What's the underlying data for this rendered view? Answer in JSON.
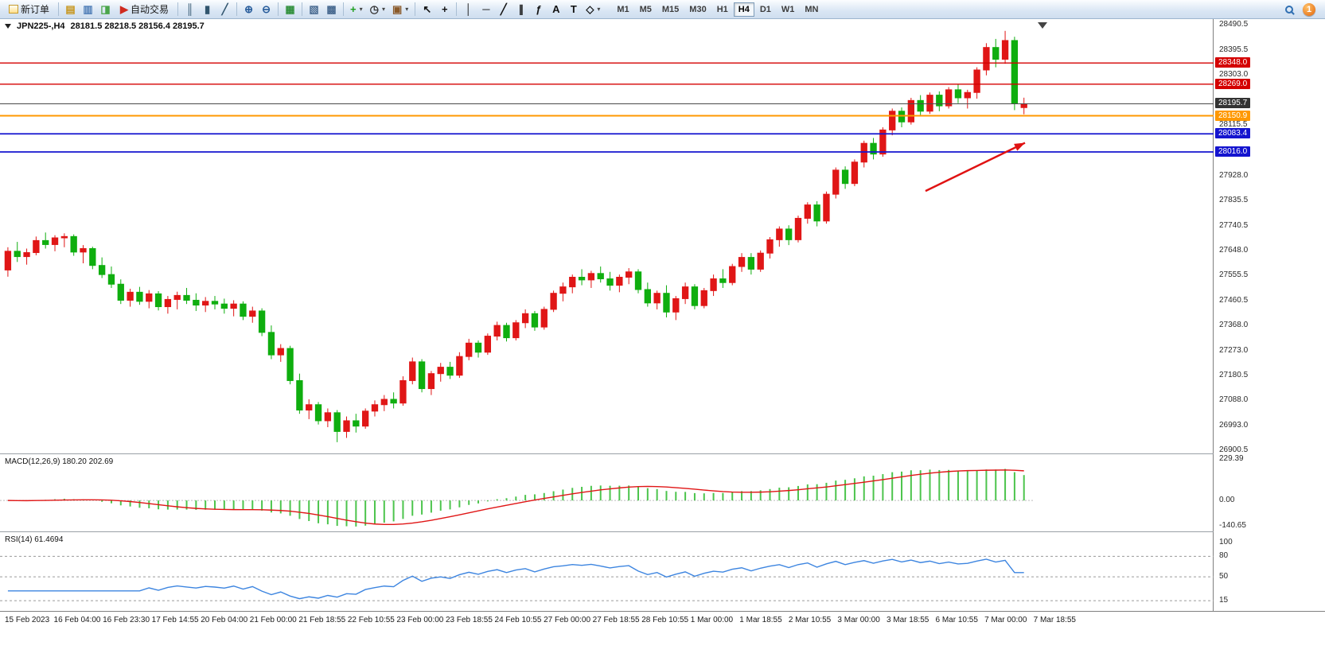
{
  "toolbar": {
    "new_order_label": "新订单",
    "notification_count": "1",
    "timeframes": [
      "M1",
      "M5",
      "M15",
      "M30",
      "H1",
      "H4",
      "D1",
      "W1",
      "MN"
    ],
    "active_timeframe": "H4",
    "icon_groups": [
      {
        "items": [
          {
            "button": "market-watch-button",
            "icon": "market-watch-icon",
            "glyph": "▤",
            "color": "#c79417"
          },
          {
            "button": "data-window-button",
            "icon": "data-window-icon",
            "glyph": "▥",
            "color": "#4a7ab5"
          },
          {
            "button": "navigator-button",
            "icon": "navigator-icon",
            "glyph": "◨",
            "color": "#4aa54a"
          },
          {
            "button": "auto-trading-button",
            "icon": "auto-trading-icon",
            "glyph": "▶",
            "color": "#cf2b20",
            "label": "自动交易"
          }
        ]
      },
      {
        "items": [
          {
            "button": "bar-chart-button",
            "icon": "bar-chart-icon",
            "glyph": "║",
            "color": "#31556e"
          },
          {
            "button": "candlestick-chart-button",
            "icon": "candlestick-chart-icon",
            "glyph": "▮",
            "color": "#31556e"
          },
          {
            "button": "line-chart-button",
            "icon": "line-chart-icon",
            "glyph": "╱",
            "color": "#31556e"
          }
        ]
      },
      {
        "items": [
          {
            "button": "zoom-in-button",
            "icon": "zoom-in-icon",
            "glyph": "⊕",
            "color": "#275c9b"
          },
          {
            "button": "zoom-out-button",
            "icon": "zoom-out-icon",
            "glyph": "⊖",
            "color": "#275c9b"
          }
        ]
      },
      {
        "items": [
          {
            "button": "tile-windows-button",
            "icon": "tile-windows-icon",
            "glyph": "▦",
            "color": "#2f8f3a"
          }
        ]
      },
      {
        "items": [
          {
            "button": "new-chart-button",
            "icon": "new-chart-icon",
            "glyph": "▧",
            "color": "#46688f"
          },
          {
            "button": "chart-profiles-button",
            "icon": "chart-profiles-icon",
            "glyph": "▩",
            "color": "#46688f"
          }
        ]
      },
      {
        "items": [
          {
            "button": "indicators-button",
            "icon": "add-indicator-icon",
            "glyph": "+",
            "color": "#1d9e1d",
            "caret": true
          },
          {
            "button": "periods-button",
            "icon": "clock-icon",
            "glyph": "◷",
            "color": "#333333",
            "caret": true
          },
          {
            "button": "templates-button",
            "icon": "template-icon",
            "glyph": "▣",
            "color": "#8a5a2a",
            "caret": true
          }
        ]
      },
      {
        "items": [
          {
            "button": "cursor-button",
            "icon": "cursor-icon",
            "glyph": "↖",
            "color": "#111111"
          },
          {
            "button": "crosshair-button",
            "icon": "crosshair-icon",
            "glyph": "+",
            "color": "#111111"
          }
        ]
      },
      {
        "items": [
          {
            "button": "vertical-line-button",
            "icon": "vertical-line-icon",
            "glyph": "│",
            "color": "#111111"
          },
          {
            "button": "horizontal-line-button",
            "icon": "horizontal-line-icon",
            "glyph": "─",
            "color": "#111111"
          },
          {
            "button": "trendline-button",
            "icon": "trendline-icon",
            "glyph": "╱",
            "color": "#111111"
          },
          {
            "button": "channel-button",
            "icon": "channel-icon",
            "glyph": "∥",
            "color": "#111111"
          },
          {
            "button": "fibonacci-button",
            "icon": "fibonacci-icon",
            "glyph": "ƒ",
            "color": "#111111"
          },
          {
            "button": "text-button",
            "icon": "text-icon",
            "glyph": "A",
            "color": "#111111"
          },
          {
            "button": "label-button",
            "icon": "text-label-icon",
            "glyph": "T",
            "color": "#111111"
          },
          {
            "button": "shapes-button",
            "icon": "shapes-icon",
            "glyph": "◇",
            "color": "#111111",
            "caret": true
          }
        ]
      }
    ]
  },
  "chart": {
    "symbol_title": "JPN225-,H4",
    "ohlc_text": "28181.5 28218.5 28156.4 28195.7",
    "macd_label": "MACD(12,26,9) 180.20 202.69",
    "rsi_label": "RSI(14) 61.4694"
  },
  "chart_data": {
    "type": "candlestick",
    "symbol": "JPN225-",
    "timeframe": "H4",
    "layout": {
      "candle_area_frac": 0.845
    },
    "colors": {
      "bull": "#e01616",
      "bear": "#0fae0f",
      "macd_hist": "#4cc44c",
      "macd_signal": "#e01616",
      "rsi_line": "#3d85e0"
    },
    "price_axis": {
      "min": 26890,
      "max": 28512,
      "ticks": [
        28490.5,
        28395.5,
        28303.0,
        28115.5,
        27928.0,
        27835.5,
        27740.5,
        27648.0,
        27555.5,
        27460.5,
        27368.0,
        27273.0,
        27180.5,
        27088.0,
        26993.0,
        26900.5
      ]
    },
    "levels": [
      {
        "name": "resistance-line-28348",
        "price": 28348.0,
        "color": "#d40000",
        "width": 1.3,
        "label_bg": "#d40000"
      },
      {
        "name": "resistance-line-28269",
        "price": 28269.0,
        "color": "#d40000",
        "width": 1.3,
        "label_bg": "#d40000"
      },
      {
        "name": "current-price-line",
        "price": 28195.7,
        "color": "#4a4a4a",
        "width": 1,
        "label_bg": "#333333"
      },
      {
        "name": "support-line-28150",
        "price": 28150.9,
        "color": "#ff9800",
        "width": 2,
        "label_bg": "#ff9800"
      },
      {
        "name": "support-line-28083",
        "price": 28083.4,
        "color": "#1414cf",
        "width": 1.8,
        "label_bg": "#1414cf"
      },
      {
        "name": "support-line-28016",
        "price": 28016.0,
        "color": "#1414cf",
        "width": 1.8,
        "label_bg": "#1414cf"
      }
    ],
    "macd": {
      "params": [
        12,
        26,
        9
      ],
      "range": [
        -171,
        247
      ],
      "axis_ticks": [
        "229.39",
        "0.00",
        "-140.65"
      ],
      "axis_tick_values": [
        229.39,
        0,
        -140.65
      ]
    },
    "rsi": {
      "period": 14,
      "levels": [
        80,
        50,
        15
      ],
      "range": [
        0,
        113
      ],
      "axis_ticks": [
        "100",
        "80",
        "50",
        "15"
      ],
      "axis_tick_values": [
        100,
        80,
        50,
        15
      ]
    },
    "arrow": {
      "x1": 0.7626,
      "price1": 27870,
      "x2": 0.8446,
      "price2": 28050,
      "color": "#e01212"
    },
    "time_labels": [
      "15 Feb 2023",
      "16 Feb 04:00",
      "16 Feb 23:30",
      "17 Feb 14:55",
      "20 Feb 04:00",
      "21 Feb 00:00",
      "21 Feb 18:55",
      "22 Feb 10:55",
      "23 Feb 00:00",
      "23 Feb 18:55",
      "24 Feb 10:55",
      "27 Feb 00:00",
      "27 Feb 18:55",
      "28 Feb 10:55",
      "1 Mar 00:00",
      "1 Mar 18:55",
      "2 Mar 10:55",
      "3 Mar 00:00",
      "3 Mar 18:55",
      "6 Mar 10:55",
      "7 Mar 00:00",
      "7 Mar 18:55"
    ],
    "candles": [
      [
        27575,
        27660,
        27550,
        27645
      ],
      [
        27645,
        27680,
        27605,
        27625
      ],
      [
        27625,
        27655,
        27595,
        27640
      ],
      [
        27640,
        27700,
        27630,
        27685
      ],
      [
        27685,
        27715,
        27655,
        27670
      ],
      [
        27670,
        27705,
        27645,
        27695
      ],
      [
        27695,
        27712,
        27660,
        27700
      ],
      [
        27700,
        27708,
        27628,
        27642
      ],
      [
        27642,
        27668,
        27600,
        27655
      ],
      [
        27655,
        27662,
        27578,
        27592
      ],
      [
        27592,
        27622,
        27545,
        27558
      ],
      [
        27558,
        27588,
        27508,
        27522
      ],
      [
        27522,
        27540,
        27448,
        27462
      ],
      [
        27462,
        27505,
        27438,
        27492
      ],
      [
        27492,
        27512,
        27445,
        27458
      ],
      [
        27458,
        27500,
        27432,
        27486
      ],
      [
        27486,
        27496,
        27424,
        27438
      ],
      [
        27438,
        27478,
        27412,
        27465
      ],
      [
        27465,
        27494,
        27428,
        27480
      ],
      [
        27480,
        27508,
        27448,
        27462
      ],
      [
        27462,
        27488,
        27422,
        27444
      ],
      [
        27444,
        27474,
        27418,
        27458
      ],
      [
        27458,
        27478,
        27428,
        27448
      ],
      [
        27448,
        27468,
        27412,
        27432
      ],
      [
        27432,
        27462,
        27402,
        27448
      ],
      [
        27448,
        27458,
        27388,
        27402
      ],
      [
        27402,
        27438,
        27378,
        27422
      ],
      [
        27422,
        27432,
        27328,
        27342
      ],
      [
        27342,
        27368,
        27242,
        27258
      ],
      [
        27258,
        27298,
        27232,
        27282
      ],
      [
        27282,
        27292,
        27148,
        27162
      ],
      [
        27162,
        27188,
        27038,
        27052
      ],
      [
        27052,
        27092,
        27018,
        27072
      ],
      [
        27072,
        27082,
        26998,
        27012
      ],
      [
        27012,
        27058,
        26988,
        27042
      ],
      [
        27042,
        27052,
        26932,
        26972
      ],
      [
        26972,
        27028,
        26948,
        27012
      ],
      [
        27012,
        27038,
        26968,
        26992
      ],
      [
        26992,
        27058,
        26982,
        27048
      ],
      [
        27048,
        27088,
        27028,
        27072
      ],
      [
        27072,
        27108,
        27048,
        27092
      ],
      [
        27092,
        27118,
        27058,
        27078
      ],
      [
        27078,
        27178,
        27068,
        27162
      ],
      [
        27162,
        27248,
        27148,
        27232
      ],
      [
        27232,
        27242,
        27118,
        27132
      ],
      [
        27132,
        27198,
        27108,
        27188
      ],
      [
        27188,
        27228,
        27158,
        27212
      ],
      [
        27212,
        27232,
        27168,
        27182
      ],
      [
        27182,
        27268,
        27172,
        27252
      ],
      [
        27252,
        27318,
        27238,
        27302
      ],
      [
        27302,
        27312,
        27248,
        27268
      ],
      [
        27268,
        27338,
        27258,
        27328
      ],
      [
        27328,
        27382,
        27312,
        27368
      ],
      [
        27368,
        27378,
        27308,
        27322
      ],
      [
        27322,
        27388,
        27312,
        27378
      ],
      [
        27378,
        27428,
        27358,
        27412
      ],
      [
        27412,
        27422,
        27348,
        27362
      ],
      [
        27362,
        27438,
        27352,
        27428
      ],
      [
        27428,
        27498,
        27418,
        27488
      ],
      [
        27488,
        27528,
        27458,
        27512
      ],
      [
        27512,
        27558,
        27488,
        27548
      ],
      [
        27548,
        27578,
        27518,
        27538
      ],
      [
        27538,
        27572,
        27508,
        27562
      ],
      [
        27562,
        27588,
        27528,
        27542
      ],
      [
        27542,
        27568,
        27498,
        27518
      ],
      [
        27518,
        27558,
        27492,
        27548
      ],
      [
        27548,
        27582,
        27522,
        27568
      ],
      [
        27568,
        27578,
        27488,
        27502
      ],
      [
        27502,
        27528,
        27438,
        27452
      ],
      [
        27452,
        27498,
        27428,
        27488
      ],
      [
        27488,
        27518,
        27398,
        27418
      ],
      [
        27418,
        27478,
        27388,
        27468
      ],
      [
        27468,
        27528,
        27448,
        27512
      ],
      [
        27512,
        27522,
        27428,
        27442
      ],
      [
        27442,
        27508,
        27432,
        27498
      ],
      [
        27498,
        27558,
        27478,
        27542
      ],
      [
        27542,
        27578,
        27508,
        27528
      ],
      [
        27528,
        27598,
        27518,
        27588
      ],
      [
        27588,
        27638,
        27568,
        27622
      ],
      [
        27622,
        27638,
        27558,
        27578
      ],
      [
        27578,
        27648,
        27568,
        27638
      ],
      [
        27638,
        27698,
        27618,
        27688
      ],
      [
        27688,
        27738,
        27662,
        27728
      ],
      [
        27728,
        27742,
        27668,
        27688
      ],
      [
        27688,
        27778,
        27678,
        27768
      ],
      [
        27768,
        27828,
        27748,
        27818
      ],
      [
        27818,
        27832,
        27738,
        27758
      ],
      [
        27758,
        27868,
        27748,
        27858
      ],
      [
        27858,
        27958,
        27842,
        27948
      ],
      [
        27948,
        27962,
        27878,
        27898
      ],
      [
        27898,
        27988,
        27888,
        27978
      ],
      [
        27978,
        28058,
        27958,
        28048
      ],
      [
        28048,
        28068,
        27988,
        28008
      ],
      [
        28008,
        28108,
        27998,
        28098
      ],
      [
        28098,
        28178,
        28078,
        28168
      ],
      [
        28168,
        28182,
        28108,
        28128
      ],
      [
        28128,
        28218,
        28118,
        28208
      ],
      [
        28208,
        28228,
        28148,
        28168
      ],
      [
        28168,
        28238,
        28158,
        28228
      ],
      [
        28228,
        28242,
        28168,
        28188
      ],
      [
        28188,
        28258,
        28178,
        28248
      ],
      [
        28248,
        28268,
        28198,
        28218
      ],
      [
        28218,
        28248,
        28178,
        28238
      ],
      [
        28238,
        28332,
        28215,
        28322
      ],
      [
        28322,
        28422,
        28302,
        28406
      ],
      [
        28406,
        28438,
        28332,
        28362
      ],
      [
        28362,
        28468,
        28345,
        28432
      ],
      [
        28432,
        28446,
        28172,
        28196
      ],
      [
        28181.5,
        28218.5,
        28156.4,
        28195.7
      ]
    ]
  }
}
